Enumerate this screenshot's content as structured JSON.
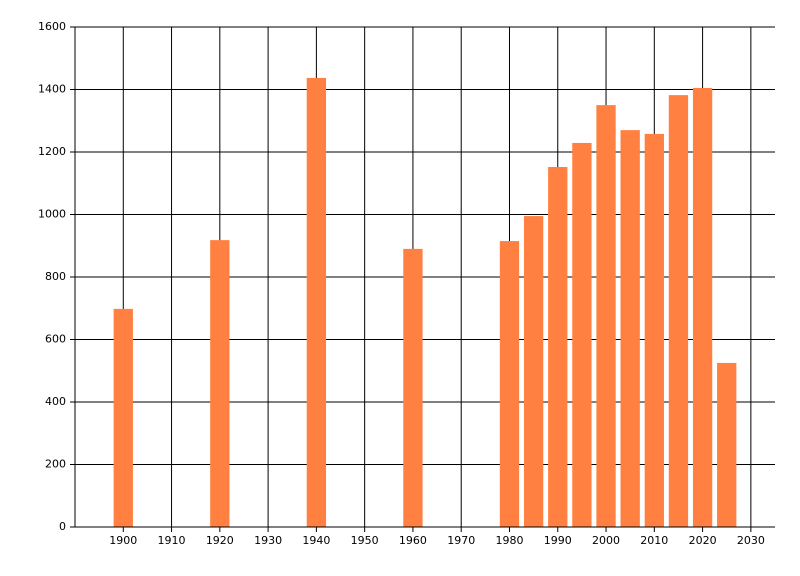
{
  "chart_data": {
    "type": "bar",
    "x": [
      1900,
      1920,
      1940,
      1960,
      1980,
      1985,
      1990,
      1995,
      2000,
      2005,
      2010,
      2015,
      2020,
      2025
    ],
    "values": [
      698,
      918,
      1437,
      890,
      915,
      995,
      1152,
      1229,
      1350,
      1270,
      1258,
      1382,
      1405,
      525
    ],
    "color": "#ff8040",
    "xlim": [
      1890,
      2035
    ],
    "xticks": [
      1900,
      1910,
      1920,
      1930,
      1940,
      1950,
      1960,
      1970,
      1980,
      1990,
      2000,
      2010,
      2020,
      2030
    ],
    "ylim": [
      0,
      1600
    ],
    "yticks": [
      0,
      200,
      400,
      600,
      800,
      1000,
      1200,
      1400,
      1600
    ],
    "grid": true
  }
}
